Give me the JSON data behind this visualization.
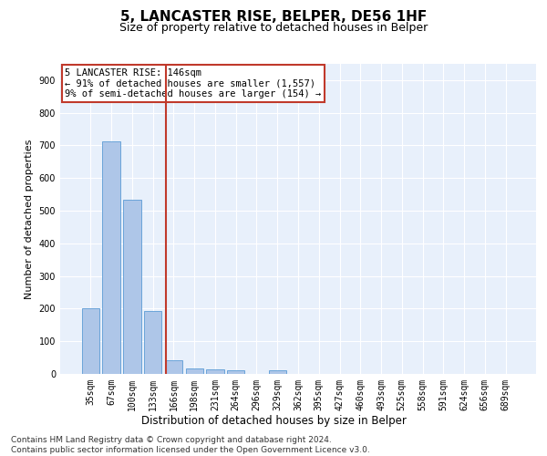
{
  "title": "5, LANCASTER RISE, BELPER, DE56 1HF",
  "subtitle": "Size of property relative to detached houses in Belper",
  "xlabel": "Distribution of detached houses by size in Belper",
  "ylabel": "Number of detached properties",
  "categories": [
    "35sqm",
    "67sqm",
    "100sqm",
    "133sqm",
    "166sqm",
    "198sqm",
    "231sqm",
    "264sqm",
    "296sqm",
    "329sqm",
    "362sqm",
    "395sqm",
    "427sqm",
    "460sqm",
    "493sqm",
    "525sqm",
    "558sqm",
    "591sqm",
    "624sqm",
    "656sqm",
    "689sqm"
  ],
  "values": [
    200,
    713,
    534,
    193,
    42,
    18,
    14,
    12,
    0,
    10,
    0,
    0,
    0,
    0,
    0,
    0,
    0,
    0,
    0,
    0,
    0
  ],
  "bar_color": "#aec6e8",
  "bar_edge_color": "#5b9bd5",
  "vline_x": 3.62,
  "vline_color": "#c0392b",
  "annotation_line1": "5 LANCASTER RISE: 146sqm",
  "annotation_line2": "← 91% of detached houses are smaller (1,557)",
  "annotation_line3": "9% of semi-detached houses are larger (154) →",
  "annotation_box_color": "#ffffff",
  "annotation_box_edge": "#c0392b",
  "ylim": [
    0,
    950
  ],
  "yticks": [
    0,
    100,
    200,
    300,
    400,
    500,
    600,
    700,
    800,
    900
  ],
  "bg_color": "#e8f0fb",
  "grid_color": "#ffffff",
  "footer": "Contains HM Land Registry data © Crown copyright and database right 2024.\nContains public sector information licensed under the Open Government Licence v3.0.",
  "title_fontsize": 11,
  "subtitle_fontsize": 9,
  "axis_label_fontsize": 8,
  "tick_fontsize": 7,
  "footer_fontsize": 6.5
}
